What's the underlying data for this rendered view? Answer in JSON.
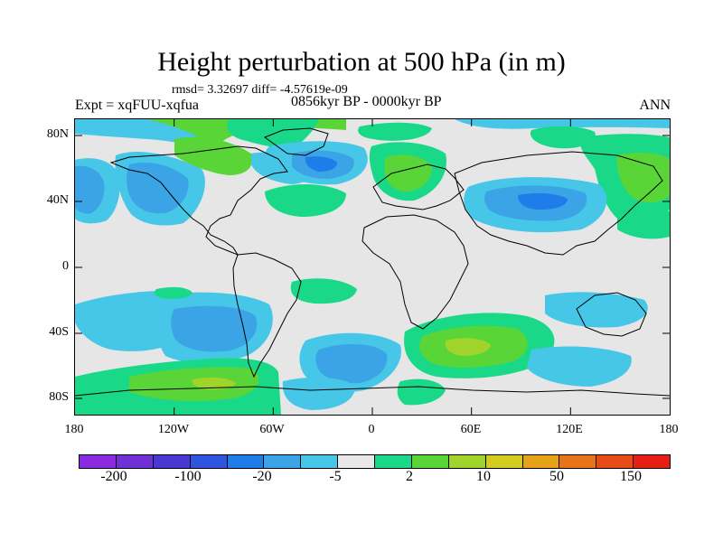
{
  "title": "Height perturbation at 500 hPa (in m)",
  "stats": "rmsd= 3.32697 diff= -4.57619e-09",
  "left_label": "Expt = xqFUU-xqfua",
  "center_label": "0856kyr BP - 0000kyr BP",
  "right_label": "ANN",
  "map": {
    "background_color": "#e6e6e6",
    "lat_ticks": [
      "80N",
      "40N",
      "0",
      "40S",
      "80S"
    ],
    "lon_ticks": [
      "180",
      "120W",
      "60W",
      "0",
      "60E",
      "120E",
      "180"
    ]
  },
  "colorbar": {
    "colors": [
      "#8a2be2",
      "#7030d8",
      "#4a37d4",
      "#2f55e0",
      "#1e7de8",
      "#3ba4e6",
      "#47c7e8",
      "#e8e8e8",
      "#19d988",
      "#5ad538",
      "#a0d42b",
      "#d2cc1e",
      "#e4a318",
      "#e87417",
      "#e84c16",
      "#e81e12"
    ],
    "labels": [
      "-200",
      "-100",
      "-20",
      "-5",
      "2",
      "10",
      "50",
      "150"
    ]
  }
}
